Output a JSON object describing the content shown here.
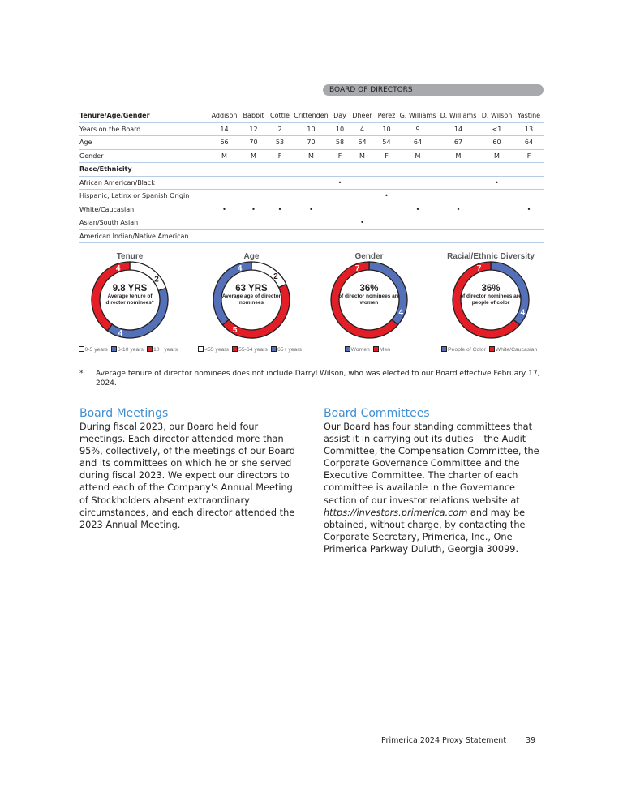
{
  "banner": "BOARD OF DIRECTORS",
  "table": {
    "header": "Tenure/Age/Gender",
    "directors": [
      "Addison",
      "Babbit",
      "Cottle",
      "Crittenden",
      "Day",
      "Dheer",
      "Perez",
      "G. Williams",
      "D. Williams",
      "D. Wilson",
      "Yastine"
    ],
    "rows": [
      {
        "label": "Years on the Board",
        "values": [
          "14",
          "12",
          "2",
          "10",
          "10",
          "4",
          "10",
          "9",
          "14",
          "<1",
          "13"
        ]
      },
      {
        "label": "Age",
        "values": [
          "66",
          "70",
          "53",
          "70",
          "58",
          "64",
          "54",
          "64",
          "67",
          "60",
          "64"
        ]
      },
      {
        "label": "Gender",
        "values": [
          "M",
          "M",
          "F",
          "M",
          "F",
          "M",
          "F",
          "M",
          "M",
          "M",
          "F"
        ]
      }
    ],
    "race_header": "Race/Ethnicity",
    "race_rows": [
      {
        "label": "African American/Black",
        "values": [
          "",
          "",
          "",
          "",
          "•",
          "",
          "",
          "",
          "",
          "•",
          ""
        ]
      },
      {
        "label": "Hispanic, Latinx or Spanish Origin",
        "values": [
          "",
          "",
          "",
          "",
          "",
          "",
          "•",
          "",
          "",
          "",
          ""
        ]
      },
      {
        "label": "White/Caucasian",
        "values": [
          "•",
          "•",
          "•",
          "•",
          "",
          "",
          "",
          "•",
          "•",
          "",
          "•"
        ]
      },
      {
        "label": "Asian/South Asian",
        "values": [
          "",
          "",
          "",
          "",
          "",
          "•",
          "",
          "",
          "",
          "",
          ""
        ]
      },
      {
        "label": "American Indian/Native American",
        "values": [
          "",
          "",
          "",
          "",
          "",
          "",
          "",
          "",
          "",
          "",
          ""
        ]
      }
    ]
  },
  "colors": {
    "red": "#e31e26",
    "blue": "#5470b8",
    "white": "#ffffff",
    "accent": "#3f8fd2"
  },
  "chart_data": [
    {
      "type": "pie",
      "title": "Tenure",
      "center_big": "9.8 YRS",
      "center_small": "Average tenure of director nominees*",
      "categories": [
        "0-5 years",
        "6-10 years",
        "10+ years"
      ],
      "values": [
        2,
        4,
        4
      ],
      "colors": [
        "#ffffff",
        "#5470b8",
        "#e31e26"
      ]
    },
    {
      "type": "pie",
      "title": "Age",
      "center_big": "63 YRS",
      "center_small": "Average age of director nominees",
      "categories": [
        "<55 years",
        "55-64 years",
        "65+ years"
      ],
      "values": [
        2,
        5,
        4
      ],
      "colors": [
        "#ffffff",
        "#e31e26",
        "#5470b8"
      ]
    },
    {
      "type": "pie",
      "title": "Gender",
      "center_big": "36%",
      "center_small": "of director nominees are women",
      "categories": [
        "Women",
        "Men"
      ],
      "values": [
        4,
        7
      ],
      "colors": [
        "#5470b8",
        "#e31e26"
      ]
    },
    {
      "type": "pie",
      "title": "Racial/Ethnic Diversity",
      "center_big": "36%",
      "center_small": "of director nominees are people of color",
      "categories": [
        "People of Color",
        "White/Caucasian"
      ],
      "values": [
        4,
        7
      ],
      "colors": [
        "#5470b8",
        "#e31e26"
      ]
    }
  ],
  "footnote": {
    "mark": "*",
    "text": "Average tenure of director nominees does not include Darryl Wilson, who was elected to our Board effective February 17, 2024."
  },
  "meetings": {
    "title": "Board Meetings",
    "text": "During fiscal 2023, our Board held four meetings. Each director attended more than 95%, collectively, of the meetings of our Board and its committees on which he or she served during fiscal 2023. We expect our directors to attend each of the Company's Annual Meeting of Stockholders absent extraordinary circumstances, and each director attended the 2023 Annual Meeting."
  },
  "committees": {
    "title": "Board Committees",
    "text_before": "Our Board has four standing committees that assist it in carrying out its duties – the Audit Committee, the Compensation Committee, the Corporate Governance Committee and the Executive Committee. The charter of each committee is available in the Governance section of our investor relations website at ",
    "link": "https://investors.primerica.com",
    "text_after": " and may be obtained, without charge, by contacting the Corporate Secretary, Primerica, Inc., One Primerica Parkway Duluth, Georgia 30099."
  },
  "footer": {
    "title": "Primerica 2024 Proxy Statement",
    "page": "39"
  }
}
